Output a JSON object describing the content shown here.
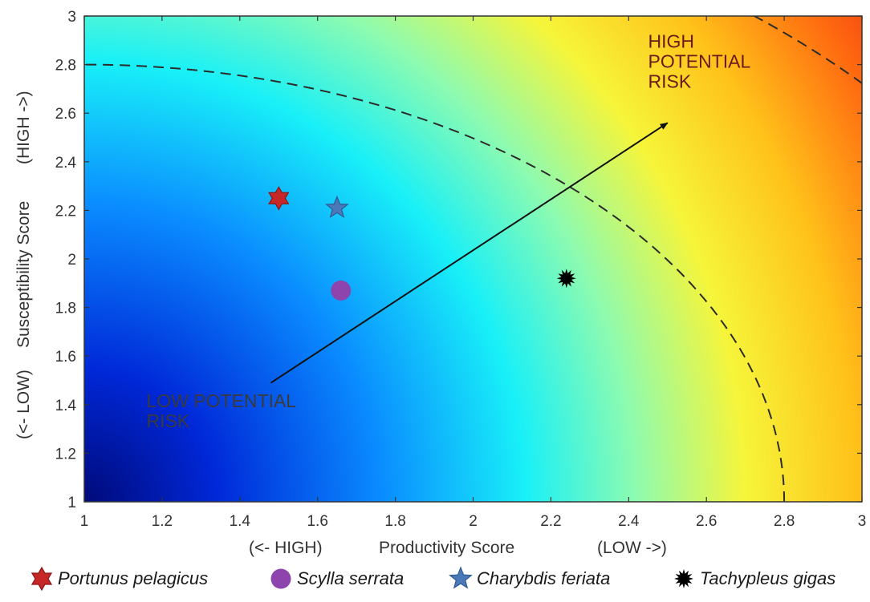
{
  "chart_data": {
    "type": "scatter",
    "title": "",
    "xlabel": "Productivity Score",
    "xlabel_left": "(<- HIGH)",
    "xlabel_right": "(LOW ->)",
    "ylabel": "Susceptibility Score",
    "ylabel_low": "(<- LOW)",
    "ylabel_high": "(HIGH ->)",
    "xlim": [
      1,
      3
    ],
    "ylim": [
      1,
      3
    ],
    "xticks": [
      "1",
      "1.2",
      "1.4",
      "1.6",
      "1.8",
      "2",
      "2.2",
      "2.4",
      "2.6",
      "2.8",
      "3"
    ],
    "yticks": [
      "1",
      "1.2",
      "1.4",
      "1.6",
      "1.8",
      "2",
      "2.2",
      "2.4",
      "2.6",
      "2.8",
      "3"
    ],
    "background": "color gradient from blue (low risk, bottom-left) through cyan, yellow to dark red (high risk, top-right)",
    "risk_contours": [
      {
        "name": "lower",
        "radius": 1.8
      },
      {
        "name": "upper",
        "radius": 2.64
      }
    ],
    "arrow": {
      "from": [
        1.48,
        1.49
      ],
      "to": [
        2.5,
        2.56
      ]
    },
    "annotations": [
      {
        "text": [
          "HIGH",
          "POTENTIAL",
          "RISK"
        ],
        "x": 2.45,
        "y": 2.87,
        "kind": "high"
      },
      {
        "text": [
          "LOW POTENTIAL",
          "RISK"
        ],
        "x": 1.16,
        "y": 1.39,
        "kind": "low"
      }
    ],
    "series": [
      {
        "name": "Portunus pelagicus",
        "marker": "star6",
        "color": "#c62828",
        "x": 1.5,
        "y": 2.25
      },
      {
        "name": "Scylla serrata",
        "marker": "circle",
        "color": "#8e44ad",
        "x": 1.66,
        "y": 1.87
      },
      {
        "name": "Charybdis feriata",
        "marker": "star5",
        "color": "#4a78b8",
        "x": 1.65,
        "y": 2.21
      },
      {
        "name": "Tachypleus gigas",
        "marker": "burst",
        "color": "#000000",
        "x": 2.24,
        "y": 1.92
      }
    ],
    "legend_position": "bottom"
  }
}
